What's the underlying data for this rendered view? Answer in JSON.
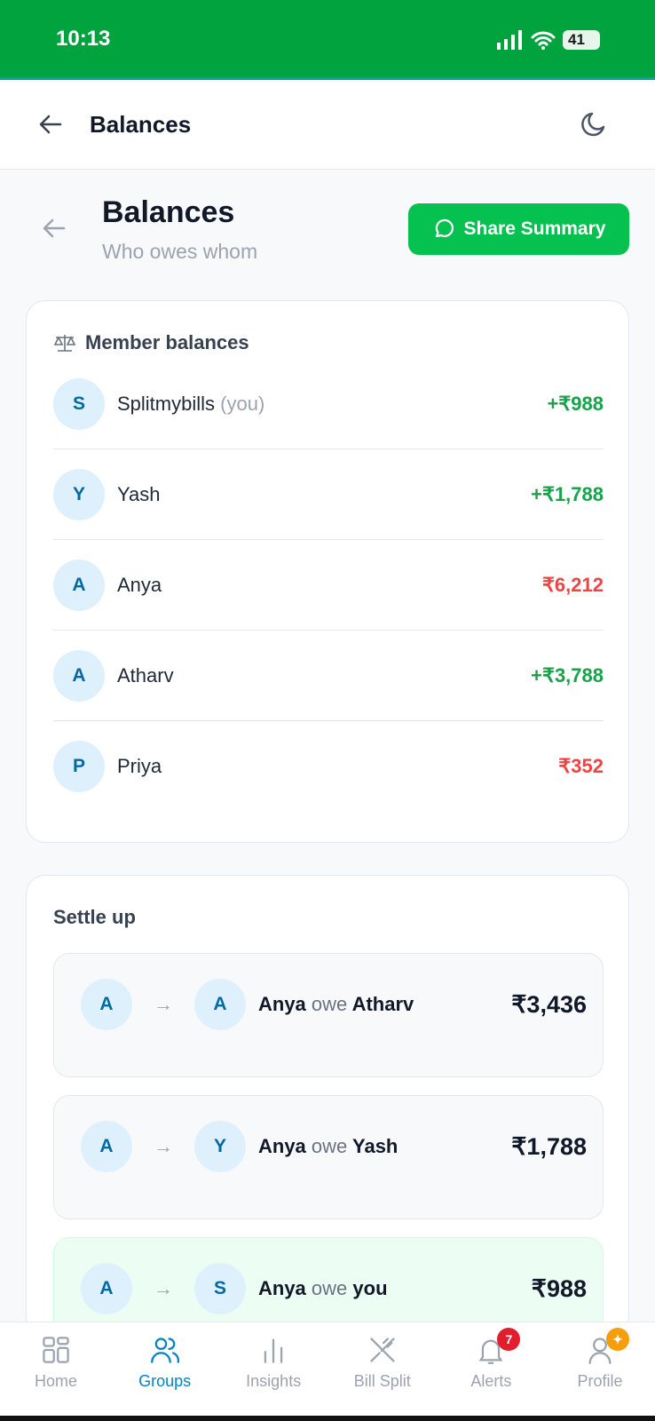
{
  "status": {
    "time": "10:13",
    "battery": "41"
  },
  "appbar": {
    "title": "Balances"
  },
  "page": {
    "title": "Balances",
    "subtitle": "Who owes whom",
    "share_label": "Share Summary"
  },
  "members": {
    "heading": "Member balances",
    "items": [
      {
        "initial": "S",
        "name": "Splitmybills",
        "suffix": "(you)",
        "amount": "+₹988",
        "type": "pos"
      },
      {
        "initial": "Y",
        "name": "Yash",
        "suffix": "",
        "amount": "+₹1,788",
        "type": "pos"
      },
      {
        "initial": "A",
        "name": "Anya",
        "suffix": "",
        "amount": "₹6,212",
        "type": "neg"
      },
      {
        "initial": "A",
        "name": "Atharv",
        "suffix": "",
        "amount": "+₹3,788",
        "type": "pos"
      },
      {
        "initial": "P",
        "name": "Priya",
        "suffix": "",
        "amount": "₹352",
        "type": "neg"
      }
    ]
  },
  "settle": {
    "heading": "Settle up",
    "items": [
      {
        "from_initial": "A",
        "to_initial": "A",
        "from": "Anya",
        "verb": "owe",
        "to": "Atharv",
        "amount": "₹3,436"
      },
      {
        "from_initial": "A",
        "to_initial": "Y",
        "from": "Anya",
        "verb": "owe",
        "to": "Yash",
        "amount": "₹1,788"
      },
      {
        "from_initial": "A",
        "to_initial": "S",
        "from": "Anya",
        "verb": "owe",
        "to": "you",
        "amount": "₹988"
      }
    ]
  },
  "nav": {
    "items": [
      {
        "label": "Home"
      },
      {
        "label": "Groups",
        "active": true
      },
      {
        "label": "Insights"
      },
      {
        "label": "Bill Split"
      },
      {
        "label": "Alerts",
        "badge": "7"
      },
      {
        "label": "Profile"
      }
    ]
  },
  "colors": {
    "brand": "#00a33d",
    "accent": "#05c150",
    "positive": "#16a34a",
    "negative": "#ef4444",
    "active_nav": "#0284c7"
  }
}
